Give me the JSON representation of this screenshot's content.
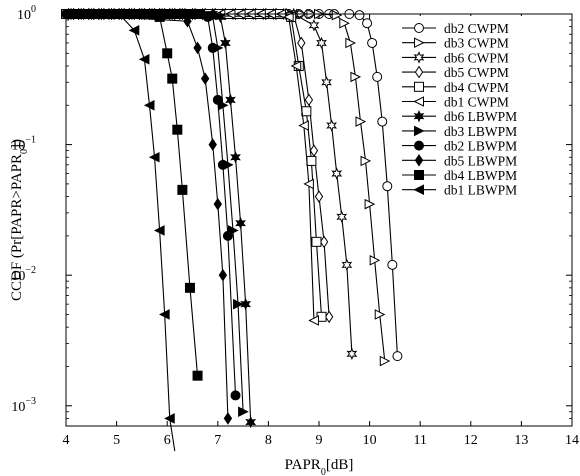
{
  "chart_data": {
    "type": "line",
    "title": "",
    "xlabel": {
      "main": "PAPR",
      "sub": "0",
      "rest": "[dB]"
    },
    "ylabel": {
      "main": "CCDF (Pr[PAPR>PAPR",
      "sub": "0",
      "rest": "])"
    },
    "xlim": [
      4,
      14
    ],
    "ylim": [
      0.0007,
      1
    ],
    "yscale": "log",
    "grid": false,
    "legend_position": "top-right",
    "xticks": [
      "4",
      "5",
      "6",
      "7",
      "8",
      "9",
      "10",
      "11",
      "12",
      "13",
      "14"
    ],
    "yticks": [
      {
        "value": 1,
        "exp": "0"
      },
      {
        "value": 0.1,
        "exp": "−1"
      },
      {
        "value": 0.01,
        "exp": "−2"
      },
      {
        "value": 0.001,
        "exp": "−3"
      }
    ],
    "series": [
      {
        "name": "db2 CWPM",
        "marker": "circle-open",
        "x": [
          4,
          9.3,
          9.6,
          9.8,
          9.95,
          10.05,
          10.15,
          10.25,
          10.35,
          10.45,
          10.55
        ],
        "y": [
          1,
          1,
          1,
          0.98,
          0.85,
          0.6,
          0.33,
          0.15,
          0.048,
          0.012,
          0.0024
        ]
      },
      {
        "name": "db3 CWPM",
        "marker": "triangle-right-open",
        "x": [
          4,
          9,
          9.35,
          9.5,
          9.62,
          9.72,
          9.82,
          9.92,
          10.0,
          10.1,
          10.2,
          10.3
        ],
        "y": [
          1,
          1,
          0.98,
          0.85,
          0.6,
          0.33,
          0.15,
          0.075,
          0.035,
          0.013,
          0.005,
          0.0022
        ]
      },
      {
        "name": "db6 CWPM",
        "marker": "hexagram-open",
        "x": [
          4,
          8.5,
          8.9,
          9.05,
          9.15,
          9.25,
          9.35,
          9.45,
          9.55,
          9.65
        ],
        "y": [
          1,
          1,
          0.82,
          0.6,
          0.3,
          0.14,
          0.06,
          0.028,
          0.012,
          0.0025
        ]
      },
      {
        "name": "db5 CWPM",
        "marker": "diamond-open",
        "x": [
          4,
          8.5,
          8.65,
          8.8,
          8.9,
          9.0,
          9.1,
          9.2
        ],
        "y": [
          1,
          0.98,
          0.6,
          0.22,
          0.09,
          0.04,
          0.018,
          0.0048
        ]
      },
      {
        "name": "db4 CWPM",
        "marker": "square-open",
        "x": [
          4,
          8.45,
          8.6,
          8.75,
          8.85,
          8.95,
          9.05
        ],
        "y": [
          1,
          0.95,
          0.4,
          0.18,
          0.075,
          0.018,
          0.0048
        ]
      },
      {
        "name": "db1 CWPM",
        "marker": "triangle-left-open",
        "x": [
          4,
          8.4,
          8.55,
          8.7,
          8.8,
          8.9
        ],
        "y": [
          1,
          0.95,
          0.4,
          0.14,
          0.05,
          0.0045
        ]
      },
      {
        "name": "db6 LBWPM",
        "marker": "hexagram-filled",
        "x": [
          4,
          7.05,
          7.15,
          7.25,
          7.35,
          7.45,
          7.55,
          7.65
        ],
        "y": [
          1,
          0.95,
          0.6,
          0.22,
          0.08,
          0.025,
          0.006,
          0.00075
        ]
      },
      {
        "name": "db3 LBWPM",
        "marker": "triangle-right-filled",
        "x": [
          4,
          6.9,
          7.0,
          7.1,
          7.2,
          7.3,
          7.4,
          7.5
        ],
        "y": [
          1,
          0.95,
          0.55,
          0.2,
          0.07,
          0.022,
          0.006,
          0.0009
        ]
      },
      {
        "name": "db2 LBWPM",
        "marker": "circle-filled",
        "x": [
          4,
          6.8,
          6.9,
          7.0,
          7.1,
          7.2,
          7.35
        ],
        "y": [
          1,
          0.95,
          0.55,
          0.22,
          0.07,
          0.02,
          0.0012
        ]
      },
      {
        "name": "db5 LBWPM",
        "marker": "diamond-filled",
        "x": [
          4,
          6.4,
          6.6,
          6.75,
          6.9,
          7.0,
          7.1,
          7.2
        ],
        "y": [
          1,
          0.88,
          0.55,
          0.32,
          0.1,
          0.035,
          0.01,
          0.0008
        ]
      },
      {
        "name": "db4 LBWPM",
        "marker": "square-filled",
        "x": [
          4,
          5.85,
          6.0,
          6.1,
          6.2,
          6.3,
          6.45,
          6.6
        ],
        "y": [
          1,
          0.95,
          0.5,
          0.32,
          0.13,
          0.045,
          0.008,
          0.0017
        ]
      },
      {
        "name": "db1 LBWPM",
        "marker": "triangle-left-filled",
        "x": [
          4,
          5.05,
          5.35,
          5.55,
          5.65,
          5.75,
          5.85,
          5.95,
          6.05,
          6.15
        ],
        "y": [
          1,
          1,
          0.75,
          0.45,
          0.2,
          0.08,
          0.022,
          0.005,
          0.0008,
          0.00045
        ]
      }
    ]
  }
}
